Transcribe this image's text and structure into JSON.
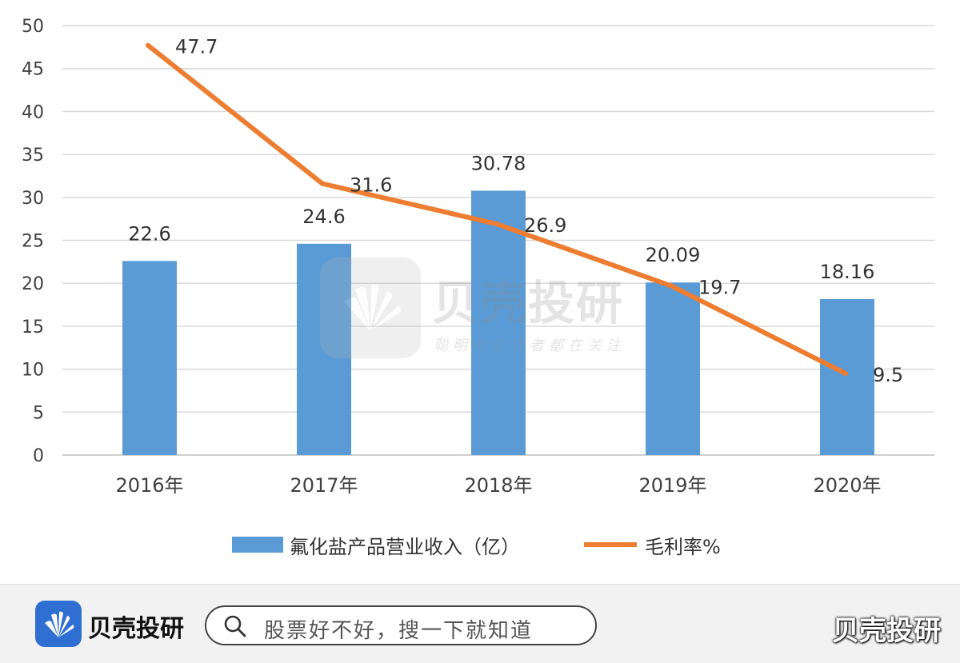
{
  "chart_data": {
    "type": "bar",
    "categories": [
      "2016年",
      "2017年",
      "2018年",
      "2019年",
      "2020年"
    ],
    "series": [
      {
        "name": "氟化盐产品营业收入（亿）",
        "type": "bar",
        "values": [
          22.6,
          24.6,
          30.78,
          20.09,
          18.16
        ],
        "labels": [
          "22.6",
          "24.6",
          "30.78",
          "20.09",
          "18.16"
        ],
        "color": "#5b9bd5"
      },
      {
        "name": "毛利率%",
        "type": "line",
        "values": [
          47.7,
          31.6,
          26.9,
          19.7,
          9.5
        ],
        "labels": [
          "47.7",
          "31.6",
          "26.9",
          "19.7",
          "9.5"
        ],
        "color": "#ed7d31"
      }
    ],
    "ylim": [
      0,
      50
    ],
    "yticks": [
      "0",
      "5",
      "10",
      "15",
      "20",
      "25",
      "30",
      "35",
      "40",
      "45",
      "50"
    ],
    "grid": true,
    "legend": "bottom"
  },
  "watermark": {
    "title": "贝壳投研",
    "slogan": "聪明的投资者都在关注"
  },
  "footer": {
    "brand": "贝壳投研",
    "search_placeholder": "股票好不好，搜一下就知道",
    "brand_right": "贝壳投研",
    "logo_color": "#2f6fd1"
  }
}
